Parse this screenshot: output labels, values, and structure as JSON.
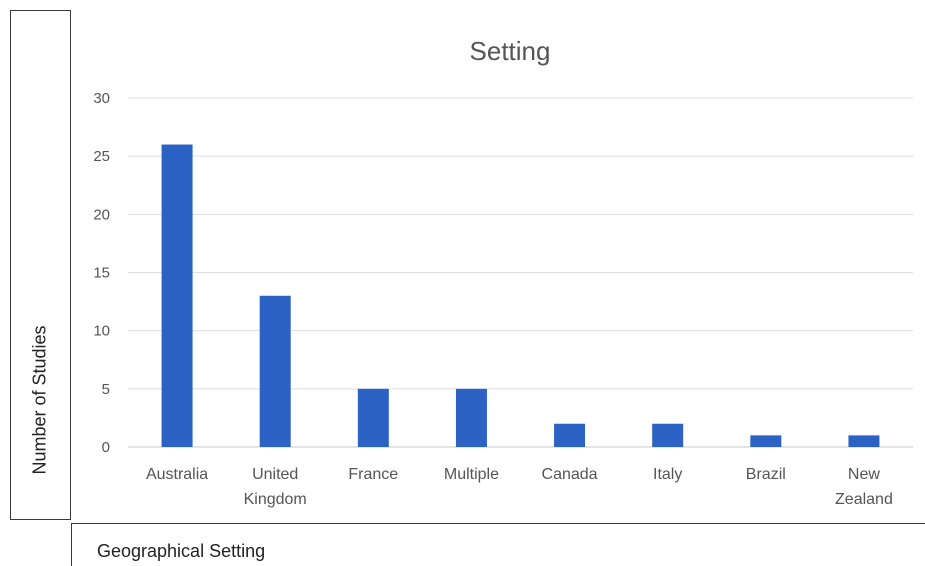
{
  "chart_data": {
    "type": "bar",
    "title": "Setting",
    "xlabel": "Geographical Setting",
    "ylabel": "Number of Studies",
    "categories": [
      [
        "Australia"
      ],
      [
        "United",
        "Kingdom"
      ],
      [
        "France"
      ],
      [
        "Multiple"
      ],
      [
        "Canada"
      ],
      [
        "Italy"
      ],
      [
        "Brazil"
      ],
      [
        "New",
        "Zealand"
      ]
    ],
    "values": [
      26,
      13,
      5,
      5,
      2,
      2,
      1,
      1
    ],
    "ylim": [
      0,
      30
    ],
    "yticks": [
      "0",
      "5",
      "10",
      "15",
      "20",
      "25",
      "30"
    ],
    "grid": true,
    "bar_color": "#2c62c3"
  }
}
